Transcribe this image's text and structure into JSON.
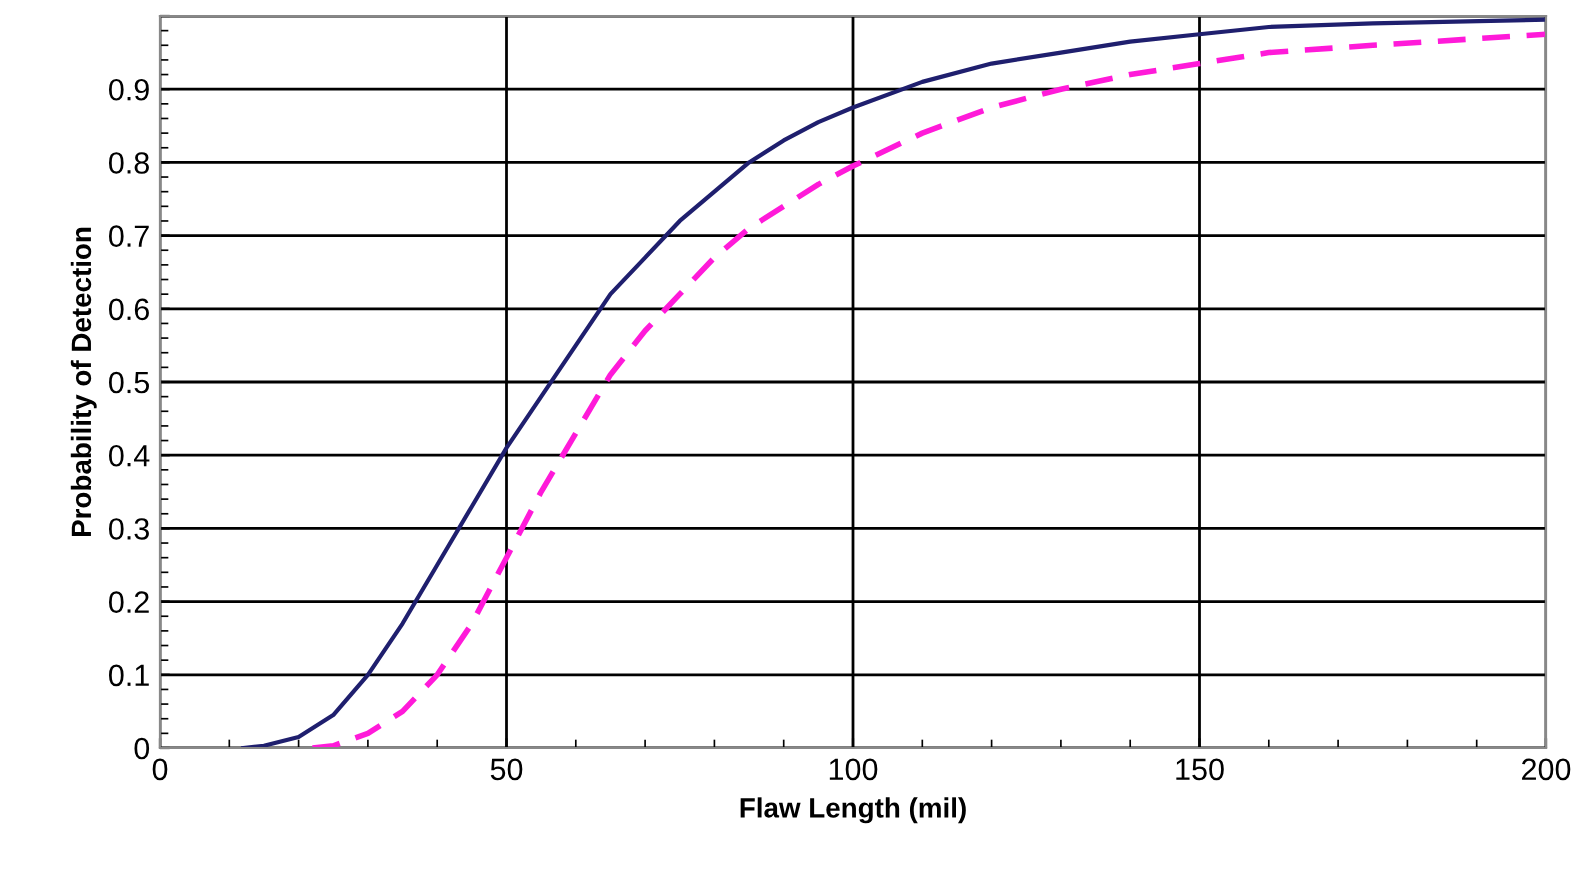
{
  "chart_data": {
    "type": "line",
    "xlabel": "Flaw Length (mil)",
    "ylabel": "Probability of Detection",
    "xlim": [
      0,
      200
    ],
    "xticks": [
      0,
      50,
      100,
      150,
      200
    ],
    "ylim": [
      0,
      1
    ],
    "yticks": [
      0,
      0.1,
      0.2,
      0.3,
      0.4,
      0.5,
      0.6,
      0.7,
      0.8,
      0.9,
      {
        "value": 1,
        "label": null
      }
    ],
    "grid": true,
    "legend": false,
    "marker": "none",
    "series": [
      {
        "color": "#1f1f6e",
        "line_style": "solid",
        "x": [
          12,
          15,
          20,
          25,
          30,
          35,
          40,
          45,
          50,
          55,
          60,
          65,
          70,
          75,
          80,
          85,
          90,
          95,
          100,
          110,
          120,
          130,
          140,
          150,
          160,
          175,
          200
        ],
        "values": [
          0,
          0.003,
          0.015,
          0.045,
          0.1,
          0.17,
          0.25,
          0.33,
          0.41,
          0.48,
          0.55,
          0.62,
          0.67,
          0.72,
          0.76,
          0.8,
          0.83,
          0.855,
          0.875,
          0.91,
          0.935,
          0.95,
          0.965,
          0.975,
          0.985,
          0.99,
          0.995
        ]
      },
      {
        "color": "#ff1ad9",
        "line_style": "dashed",
        "x": [
          22,
          25,
          30,
          35,
          40,
          45,
          50,
          55,
          60,
          65,
          70,
          75,
          80,
          85,
          90,
          95,
          100,
          110,
          120,
          130,
          140,
          150,
          160,
          175,
          200
        ],
        "values": [
          0,
          0.003,
          0.02,
          0.05,
          0.1,
          0.17,
          0.26,
          0.35,
          0.43,
          0.51,
          0.57,
          0.62,
          0.67,
          0.71,
          0.74,
          0.77,
          0.795,
          0.84,
          0.875,
          0.9,
          0.92,
          0.935,
          0.95,
          0.96,
          0.975
        ]
      }
    ]
  }
}
